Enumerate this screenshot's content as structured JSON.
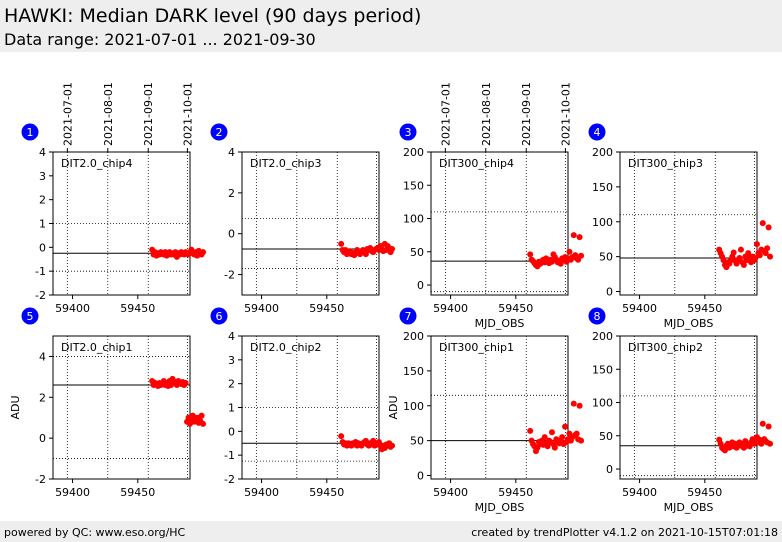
{
  "header": {
    "title": "HAWKI: Median DARK level (90 days period)",
    "subtitle": "Data range: 2021-07-01 ... 2021-09-30"
  },
  "footer": {
    "left": "powered by QC: www.eso.org/HC",
    "right": "created by trendPlotter v4.1.2 on 2021-10-15T07:01:18"
  },
  "colors": {
    "marker": "#ff0000",
    "badge": "#0000ff",
    "header_bg": "#eeeeee"
  },
  "chart_data": [
    {
      "type": "scatter",
      "panel": "1",
      "label": "DIT2.0_chip4",
      "xlabel": "",
      "ylabel": "",
      "xlim": [
        59385,
        59490
      ],
      "ylim": [
        -2,
        4
      ],
      "yticks": [
        -2,
        -1,
        0,
        1,
        2,
        3,
        4
      ],
      "xticks": [
        59400,
        59450
      ],
      "ref": -0.25,
      "dotted": [
        1.0,
        -1.0
      ],
      "top_dates": [
        "2021-07-01",
        "2021-08-01",
        "2021-09-01",
        "2021-10-01"
      ],
      "values": [
        -0.1,
        -0.3,
        -0.2,
        -0.35,
        -0.25,
        -0.3,
        -0.2,
        -0.25,
        -0.3,
        -0.2,
        -0.35,
        -0.25,
        -0.2,
        -0.3,
        -0.25,
        -0.3,
        -0.2,
        -0.4,
        -0.25,
        -0.3,
        -0.2,
        -0.25,
        -0.3,
        -0.2,
        -0.25,
        -0.3,
        -0.2,
        -0.1,
        -0.25,
        -0.3,
        -0.2,
        -0.35,
        -0.15,
        -0.25,
        -0.3,
        -0.2
      ]
    },
    {
      "type": "scatter",
      "panel": "2",
      "label": "DIT2.0_chip3",
      "xlabel": "",
      "ylabel": "",
      "xlim": [
        59385,
        59490
      ],
      "ylim": [
        -3,
        4
      ],
      "yticks": [
        -2,
        0,
        2,
        4
      ],
      "xticks": [
        59400,
        59450
      ],
      "ref": -0.75,
      "dotted": [
        0.75,
        -1.7
      ],
      "top_dates": [],
      "values": [
        -0.5,
        -0.8,
        -0.9,
        -0.8,
        -1.0,
        -0.9,
        -0.85,
        -1.0,
        -0.95,
        -1.05,
        -0.9,
        -0.8,
        -0.95,
        -1.0,
        -0.85,
        -0.8,
        -0.9,
        -1.0,
        -0.75,
        -0.8,
        -0.7,
        -0.85,
        -0.9,
        -0.8,
        -0.75,
        -0.7,
        -0.8,
        -0.6,
        -0.75,
        -0.85,
        -0.5,
        -0.8,
        -0.6,
        -0.7,
        -0.9,
        -0.75
      ]
    },
    {
      "type": "scatter",
      "panel": "3",
      "label": "DIT300_chip4",
      "xlabel": "MJD_OBS",
      "ylabel": "",
      "xlim": [
        59385,
        59490
      ],
      "ylim": [
        -15,
        200
      ],
      "yticks": [
        0,
        50,
        100,
        150,
        200
      ],
      "xticks": [
        59400,
        59450
      ],
      "ref": 36,
      "dotted": [
        110,
        -10
      ],
      "top_dates": [
        "2021-07-01",
        "2021-08-01",
        "2021-09-01",
        "2021-10-01"
      ],
      "values": [
        46,
        38,
        36,
        33,
        30,
        28,
        35,
        32,
        36,
        38,
        34,
        40,
        36,
        33,
        38,
        35,
        46,
        42,
        38,
        34,
        36,
        32,
        40,
        38,
        42,
        35,
        40,
        50,
        38,
        42,
        75,
        45,
        40,
        38,
        72,
        44
      ]
    },
    {
      "type": "scatter",
      "panel": "4",
      "label": "DIT300_chip3",
      "xlabel": "MJD_OBS",
      "ylabel": "",
      "xlim": [
        59385,
        59490
      ],
      "ylim": [
        -5,
        200
      ],
      "yticks": [
        0,
        50,
        100,
        150,
        200
      ],
      "xticks": [
        59400,
        59450
      ],
      "ref": 48,
      "dotted": [
        110,
        -5
      ],
      "top_dates": [],
      "values": [
        60,
        55,
        50,
        45,
        38,
        35,
        42,
        40,
        45,
        50,
        56,
        44,
        40,
        45,
        48,
        60,
        42,
        38,
        50,
        45,
        55,
        48,
        42,
        50,
        45,
        48,
        68,
        55,
        52,
        60,
        98,
        58,
        55,
        62,
        92,
        50
      ]
    },
    {
      "type": "scatter",
      "panel": "5",
      "label": "DIT2.0_chip1",
      "xlabel": "",
      "ylabel": "ADU",
      "xlim": [
        59385,
        59490
      ],
      "ylim": [
        -2,
        5
      ],
      "yticks": [
        -2,
        0,
        2,
        4
      ],
      "xticks": [
        59400,
        59450
      ],
      "ref": 2.6,
      "dotted": [
        4.0,
        -1.0
      ],
      "top_dates": [],
      "values": [
        2.8,
        2.6,
        2.7,
        2.6,
        2.55,
        2.7,
        2.6,
        2.65,
        2.8,
        2.6,
        2.7,
        2.55,
        2.8,
        2.6,
        2.9,
        2.7,
        2.75,
        2.6,
        2.8,
        2.7,
        2.65,
        2.75,
        2.6,
        2.7,
        0.8,
        1.0,
        0.7,
        0.9,
        1.1,
        0.8,
        0.9,
        1.0,
        0.75,
        0.85,
        1.1,
        0.7
      ]
    },
    {
      "type": "scatter",
      "panel": "6",
      "label": "DIT2.0_chip2",
      "xlabel": "",
      "ylabel": "",
      "xlim": [
        59385,
        59490
      ],
      "ylim": [
        -2,
        4
      ],
      "yticks": [
        -2,
        -1,
        0,
        1,
        2,
        3,
        4
      ],
      "xticks": [
        59400,
        59450
      ],
      "ref": -0.5,
      "dotted": [
        1.0,
        -1.25
      ],
      "top_dates": [],
      "values": [
        -0.2,
        -0.45,
        -0.55,
        -0.5,
        -0.6,
        -0.5,
        -0.55,
        -0.6,
        -0.5,
        -0.55,
        -0.45,
        -0.6,
        -0.5,
        -0.55,
        -0.6,
        -0.5,
        -0.45,
        -0.4,
        -0.55,
        -0.6,
        -0.5,
        -0.55,
        -0.4,
        -0.6,
        -0.5,
        -0.55,
        -0.45,
        -0.6,
        -0.75,
        -0.6,
        -0.7,
        -0.55,
        -0.6,
        -0.5,
        -0.65,
        -0.6
      ]
    },
    {
      "type": "scatter",
      "panel": "7",
      "label": "DIT300_chip1",
      "xlabel": "MJD_OBS",
      "ylabel": "ADU",
      "xlim": [
        59385,
        59490
      ],
      "ylim": [
        -5,
        200
      ],
      "yticks": [
        0,
        50,
        100,
        150,
        200
      ],
      "xticks": [
        59400,
        59450
      ],
      "ref": 50,
      "dotted": [
        115,
        -5
      ],
      "top_dates": [],
      "values": [
        64,
        50,
        45,
        42,
        35,
        40,
        48,
        45,
        50,
        44,
        55,
        46,
        42,
        50,
        48,
        62,
        45,
        40,
        52,
        48,
        46,
        50,
        55,
        45,
        70,
        48,
        52,
        60,
        50,
        55,
        103,
        58,
        60,
        52,
        100,
        50
      ]
    },
    {
      "type": "scatter",
      "panel": "8",
      "label": "DIT300_chip2",
      "xlabel": "MJD_OBS",
      "ylabel": "",
      "xlim": [
        59385,
        59490
      ],
      "ylim": [
        -15,
        200
      ],
      "yticks": [
        0,
        50,
        100,
        150,
        200
      ],
      "xticks": [
        59400,
        59450
      ],
      "ref": 35,
      "dotted": [
        110,
        -10
      ],
      "top_dates": [],
      "values": [
        44,
        38,
        32,
        30,
        28,
        35,
        38,
        32,
        36,
        40,
        34,
        38,
        32,
        36,
        40,
        35,
        38,
        32,
        42,
        35,
        38,
        34,
        40,
        45,
        38,
        42,
        48,
        40,
        44,
        38,
        68,
        45,
        42,
        40,
        64,
        38
      ]
    }
  ]
}
